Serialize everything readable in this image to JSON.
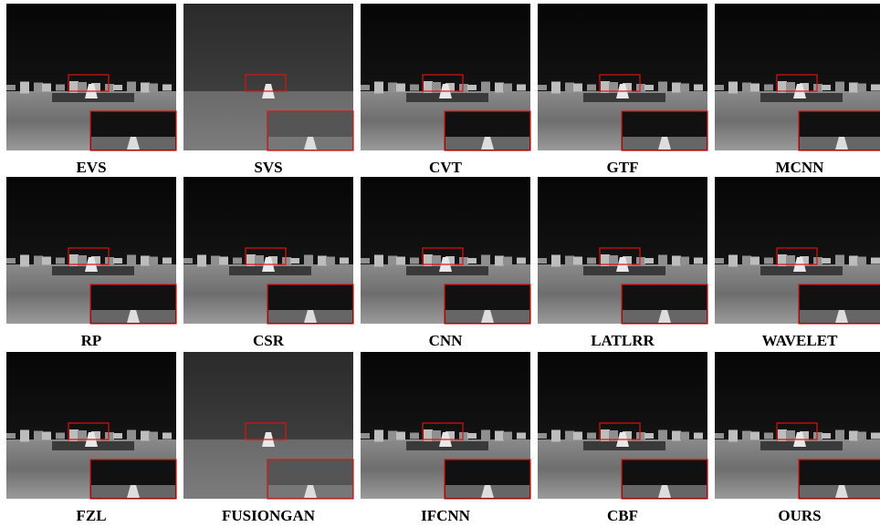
{
  "panels": [
    {
      "label": "EVS"
    },
    {
      "label": "SVS"
    },
    {
      "label": "CVT"
    },
    {
      "label": "GTF"
    },
    {
      "label": "MCNN"
    },
    {
      "label": "RP"
    },
    {
      "label": "CSR"
    },
    {
      "label": "CNN"
    },
    {
      "label": "LATLRR"
    },
    {
      "label": "WAVELET"
    },
    {
      "label": "FZL"
    },
    {
      "label": "FUSIONGAN"
    },
    {
      "label": "IFCNN"
    },
    {
      "label": "CBF"
    },
    {
      "label": "OURS"
    }
  ]
}
